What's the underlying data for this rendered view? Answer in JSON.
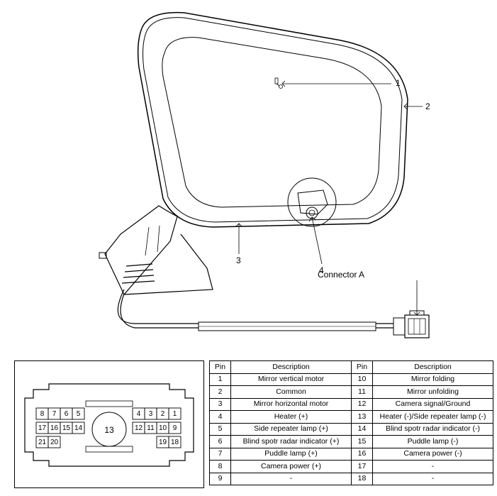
{
  "callouts": {
    "c1": "1",
    "c2": "2",
    "c3": "3",
    "c4": "4"
  },
  "connector_label": "Connector A",
  "pin_table": {
    "header_pin": "Pin",
    "header_desc": "Description",
    "rows": [
      {
        "a_pin": "1",
        "a_desc": "Mirror vertical motor",
        "a_small": false,
        "b_pin": "10",
        "b_desc": "Mirror folding",
        "b_small": false
      },
      {
        "a_pin": "2",
        "a_desc": "Common",
        "a_small": false,
        "b_pin": "11",
        "b_desc": "Mirror unfolding",
        "b_small": false
      },
      {
        "a_pin": "3",
        "a_desc": "Mirror horizontal motor",
        "a_small": false,
        "b_pin": "12",
        "b_desc": "Camera signal/Ground",
        "b_small": false
      },
      {
        "a_pin": "4",
        "a_desc": "Heater (+)",
        "a_small": false,
        "b_pin": "13",
        "b_desc": "Heater (-)/Side repeater lamp (-)",
        "b_small": true
      },
      {
        "a_pin": "5",
        "a_desc": "Side repeater lamp (+)",
        "a_small": false,
        "b_pin": "14",
        "b_desc": "Blind spotr radar indicator (-)",
        "b_small": true
      },
      {
        "a_pin": "6",
        "a_desc": "Blind spotr radar indicator (+)",
        "a_small": true,
        "b_pin": "15",
        "b_desc": "Puddle lamp (-)",
        "b_small": false
      },
      {
        "a_pin": "7",
        "a_desc": "Puddle lamp (+)",
        "a_small": false,
        "b_pin": "16",
        "b_desc": "Camera power (-)",
        "b_small": false
      },
      {
        "a_pin": "8",
        "a_desc": "Camera power (+)",
        "a_small": false,
        "b_pin": "17",
        "b_desc": "-",
        "b_small": false
      },
      {
        "a_pin": "9",
        "a_desc": "-",
        "a_small": false,
        "b_pin": "18",
        "b_desc": "-",
        "b_small": false
      }
    ]
  },
  "connector_diagram": {
    "center_label": "13",
    "row1": [
      "8",
      "7",
      "6",
      "5",
      "4",
      "3",
      "2",
      "1"
    ],
    "row2": [
      "17",
      "16",
      "15",
      "14",
      "12",
      "11",
      "10",
      "9"
    ],
    "row3_left": [
      "21",
      "20"
    ],
    "row3_right": [
      "19",
      "18"
    ]
  },
  "colors": {
    "stroke": "#000000",
    "bg": "#ffffff",
    "light_gray": "#f4f4f4"
  }
}
